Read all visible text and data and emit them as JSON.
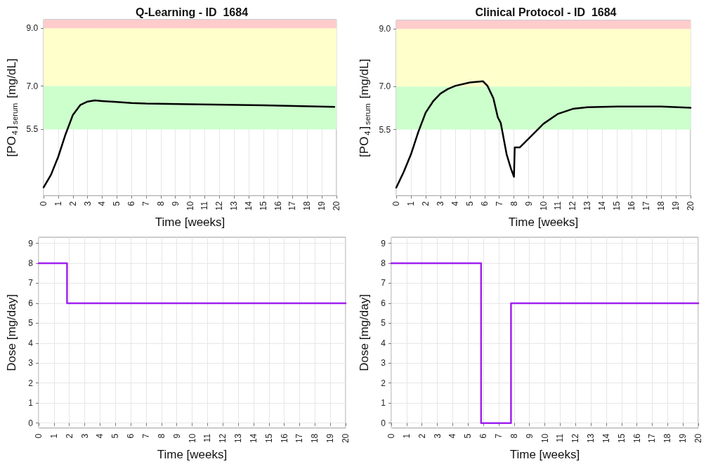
{
  "chart_data": [
    {
      "type": "line",
      "title": "Q-Learning - ID  1684",
      "xlabel": "Time [weeks]",
      "ylabel": "[PO$_{4}$]$_{serum}$ [mg/dL]",
      "series": [
        {
          "color": "#000000",
          "x": [
            0,
            0.5,
            1,
            1.5,
            2,
            2.5,
            3,
            3.5,
            4,
            5,
            6,
            7,
            10,
            15,
            19.85
          ],
          "values": [
            3.49,
            3.92,
            4.55,
            5.33,
            6.0,
            6.34,
            6.46,
            6.5,
            6.48,
            6.45,
            6.41,
            6.39,
            6.37,
            6.33,
            6.28
          ]
        }
      ],
      "xlim": [
        0,
        20
      ],
      "xticks": [
        0,
        1,
        2,
        3,
        4,
        5,
        6,
        7,
        8,
        9,
        10,
        11,
        12,
        13,
        14,
        15,
        16,
        17,
        18,
        19,
        20
      ],
      "ylim": [
        3.2,
        9.3
      ],
      "yticks": [
        {
          "value": 5.5,
          "label": "5.5"
        },
        {
          "value": 7,
          "label": "7.0"
        },
        {
          "value": 9,
          "label": "9.0"
        }
      ],
      "bands": [
        {
          "axis": "y",
          "from": 5.5,
          "to": 7,
          "color": "#ccffcc"
        },
        {
          "axis": "y",
          "from": 7,
          "to": 9,
          "color": "#ffffcc"
        },
        {
          "axis": "y",
          "from": 9,
          "to": 9.3,
          "color": "#ffcccc"
        }
      ],
      "grid": "x",
      "marker": "none",
      "line_style": "solid"
    },
    {
      "type": "line",
      "title": "Clinical Protocol - ID  1684",
      "xlabel": "Time [weeks]",
      "ylabel": "[PO$_{4}$]$_{serum}$ [mg/dL]",
      "series": [
        {
          "color": "#000000",
          "x": [
            0,
            0.5,
            1,
            1.5,
            2,
            2.5,
            3,
            3.5,
            4,
            5,
            5.9,
            6.2,
            6.6,
            6.9,
            7.1,
            7.2,
            7.5,
            7.8,
            8.0,
            8.05,
            8.4,
            9,
            10,
            11,
            12,
            13,
            15,
            18,
            20
          ],
          "values": [
            3.48,
            4.02,
            4.64,
            5.42,
            6.09,
            6.48,
            6.75,
            6.91,
            7.02,
            7.14,
            7.18,
            7.02,
            6.59,
            5.93,
            5.73,
            5.46,
            4.64,
            4.13,
            3.86,
            4.88,
            4.88,
            5.19,
            5.7,
            6.05,
            6.22,
            6.28,
            6.3,
            6.3,
            6.26
          ]
        }
      ],
      "xlim": [
        0,
        20
      ],
      "xticks": [
        0,
        1,
        2,
        3,
        4,
        5,
        6,
        7,
        8,
        9,
        10,
        11,
        12,
        13,
        14,
        15,
        16,
        17,
        18,
        19,
        20
      ],
      "ylim": [
        3.2,
        9.3
      ],
      "yticks": [
        {
          "value": 5.5,
          "label": "5.5"
        },
        {
          "value": 7,
          "label": "7.0"
        },
        {
          "value": 9,
          "label": "9.0"
        }
      ],
      "bands": [
        {
          "axis": "y",
          "from": 5.5,
          "to": 7,
          "color": "#ccffcc"
        },
        {
          "axis": "y",
          "from": 7,
          "to": 9,
          "color": "#ffffcc"
        },
        {
          "axis": "y",
          "from": 9,
          "to": 9.3,
          "color": "#ffcccc"
        }
      ],
      "grid": "x",
      "marker": "none",
      "line_style": "solid"
    },
    {
      "type": "step",
      "xlabel": "Time [weeks]",
      "ylabel": "Dose [mg/day]",
      "series": [
        {
          "color": "#a020f0",
          "x": [
            0,
            1.85,
            20
          ],
          "values": [
            8,
            6,
            6
          ]
        }
      ],
      "xlim": [
        0,
        20
      ],
      "xticks": [
        0,
        1,
        2,
        3,
        4,
        5,
        6,
        7,
        8,
        9,
        10,
        11,
        12,
        13,
        14,
        15,
        16,
        17,
        18,
        19,
        20
      ],
      "ylim": [
        -0.25,
        9.3
      ],
      "yticks": [
        0,
        1,
        2,
        3,
        4,
        5,
        6,
        7,
        8,
        9
      ],
      "grid": true,
      "marker": "none",
      "line_style": "solid"
    },
    {
      "type": "step",
      "xlabel": "Time [weeks]",
      "ylabel": "Dose [mg/day]",
      "series": [
        {
          "color": "#a020f0",
          "x": [
            0,
            5.85,
            7.8,
            20
          ],
          "values": [
            8,
            0,
            6,
            6
          ]
        }
      ],
      "xlim": [
        0,
        20
      ],
      "xticks": [
        0,
        1,
        2,
        3,
        4,
        5,
        6,
        7,
        8,
        9,
        10,
        11,
        12,
        13,
        14,
        15,
        16,
        17,
        18,
        19,
        20
      ],
      "ylim": [
        -0.25,
        9.3
      ],
      "yticks": [
        0,
        1,
        2,
        3,
        4,
        5,
        6,
        7,
        8,
        9
      ],
      "grid": true,
      "marker": "none",
      "line_style": "solid"
    }
  ]
}
